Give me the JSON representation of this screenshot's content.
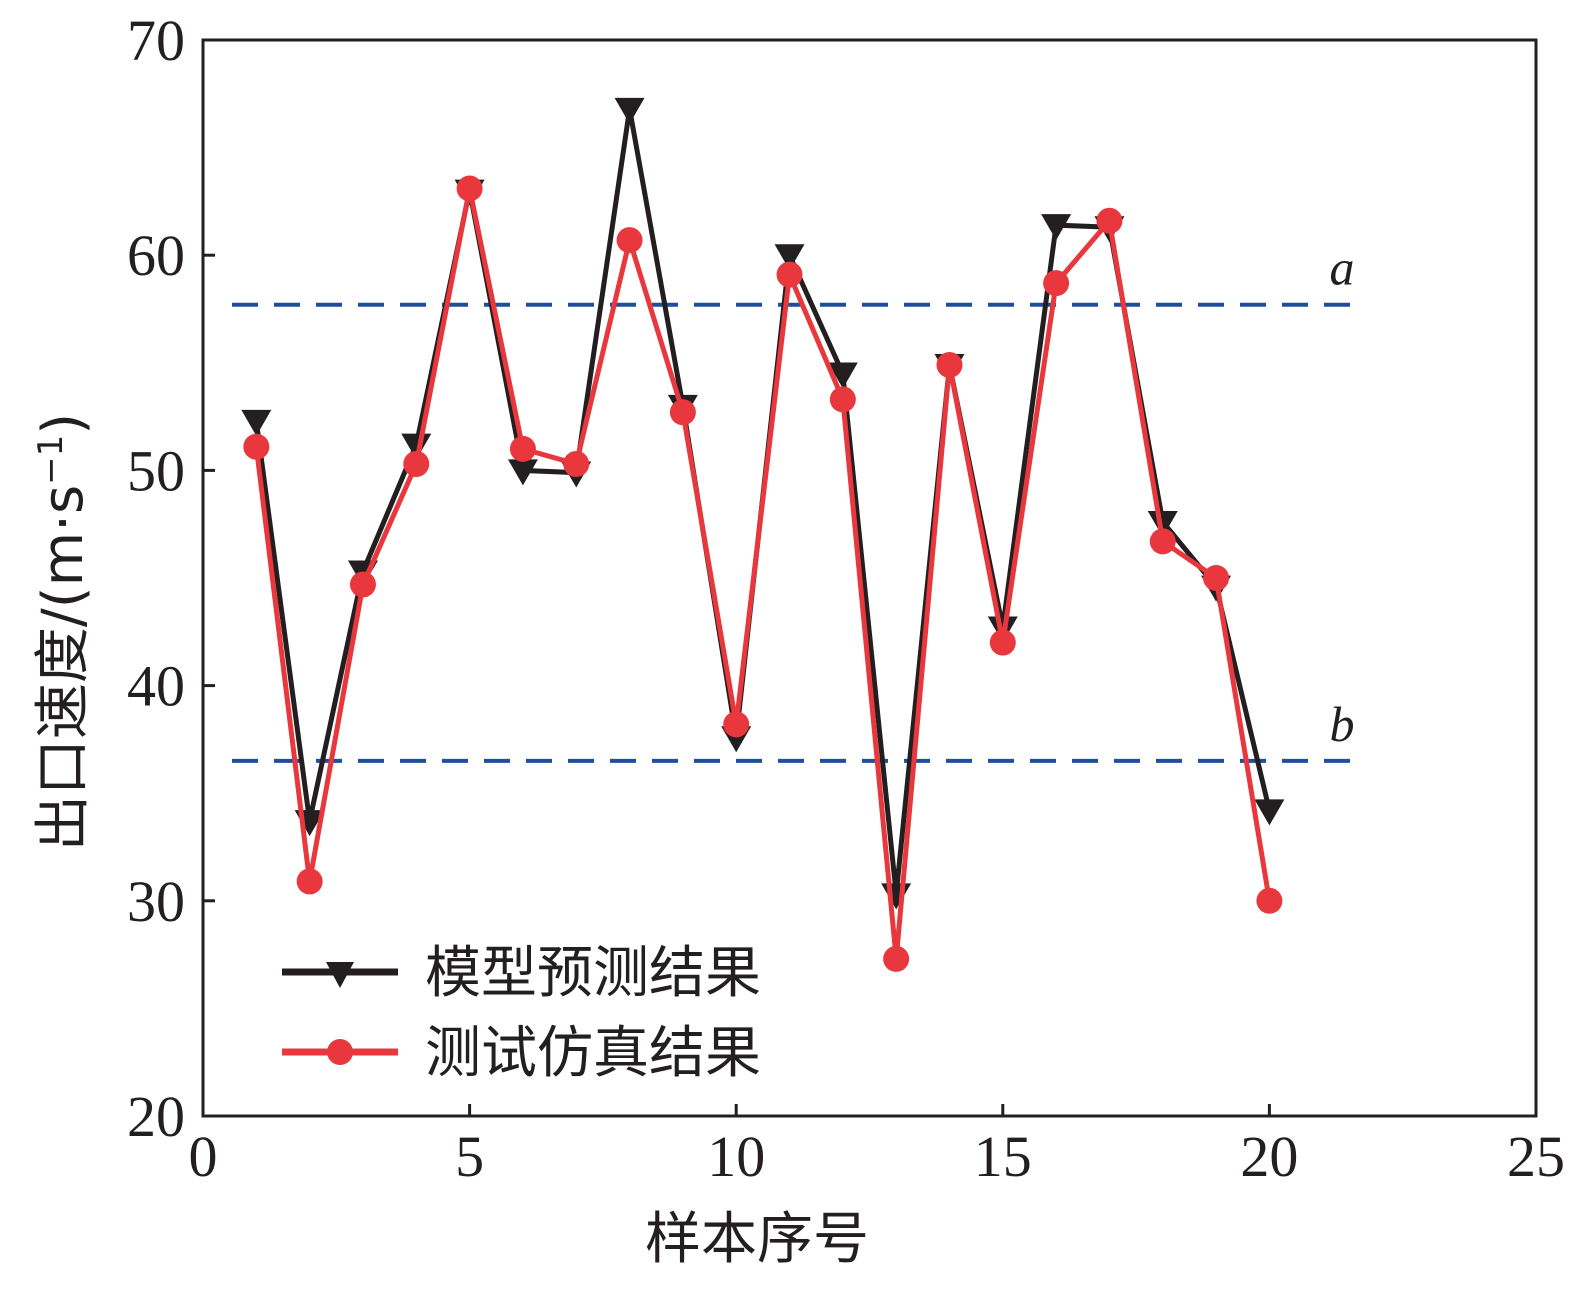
{
  "chart_data": {
    "type": "line",
    "xlabel": "样本序号",
    "ylabel": "出口速度/(m·s",
    "ylabel_exponent": "−1",
    "ylabel_close": ")",
    "xlim": [
      0,
      25
    ],
    "ylim": [
      20,
      70
    ],
    "xticks": [
      0,
      5,
      10,
      15,
      20,
      25
    ],
    "yticks": [
      20,
      30,
      40,
      50,
      60,
      70
    ],
    "grid": false,
    "legend_position": "bottom-left",
    "x": [
      1,
      2,
      3,
      4,
      5,
      6,
      7,
      8,
      9,
      10,
      11,
      12,
      13,
      14,
      15,
      16,
      17,
      18,
      19,
      20
    ],
    "series": [
      {
        "name": "模型预测结果",
        "color": "#231f20",
        "marker": "triangle-down",
        "values": [
          52.3,
          33.7,
          45.3,
          51.2,
          63.0,
          50.0,
          49.9,
          66.8,
          53.0,
          37.6,
          60.0,
          54.5,
          30.3,
          54.9,
          42.7,
          61.4,
          61.3,
          47.6,
          44.6,
          34.2
        ]
      },
      {
        "name": "测试仿真结果",
        "color": "#e8383d",
        "marker": "circle",
        "values": [
          51.1,
          30.9,
          44.7,
          50.3,
          63.1,
          51.0,
          50.3,
          60.7,
          52.7,
          38.2,
          59.1,
          53.3,
          27.3,
          54.9,
          42.0,
          58.7,
          61.6,
          46.7,
          45.0,
          30.0
        ]
      }
    ],
    "reference_lines": [
      {
        "label": "a",
        "y": 57.7,
        "color": "#1f4e9e"
      },
      {
        "label": "b",
        "y": 36.5,
        "color": "#1f4e9e"
      }
    ]
  }
}
